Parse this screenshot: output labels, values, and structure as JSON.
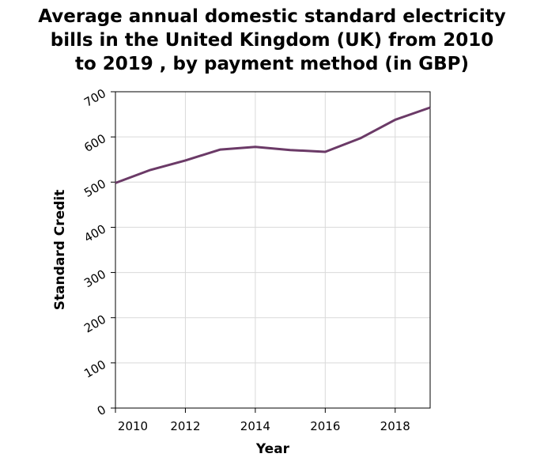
{
  "chart_data": {
    "type": "line",
    "title_lines": [
      "Average annual domestic standard electricity",
      "bills in the United Kingdom (UK) from 2010",
      "to 2019 , by payment method (in GBP)"
    ],
    "xlabel": "Year",
    "ylabel": "Standard Credit",
    "xlim": [
      2010,
      2019
    ],
    "ylim": [
      0,
      700
    ],
    "x_ticks": [
      2010,
      2012,
      2014,
      2016,
      2018
    ],
    "y_ticks": [
      0,
      100,
      200,
      300,
      400,
      500,
      600,
      700
    ],
    "grid": true,
    "legend": false,
    "series": [
      {
        "color": "#6b3a67",
        "x": [
          2010,
          2011,
          2012,
          2013,
          2014,
          2015,
          2016,
          2017,
          2018,
          2019
        ],
        "y": [
          498,
          527,
          548,
          572,
          578,
          571,
          567,
          597,
          638,
          665
        ]
      }
    ]
  }
}
